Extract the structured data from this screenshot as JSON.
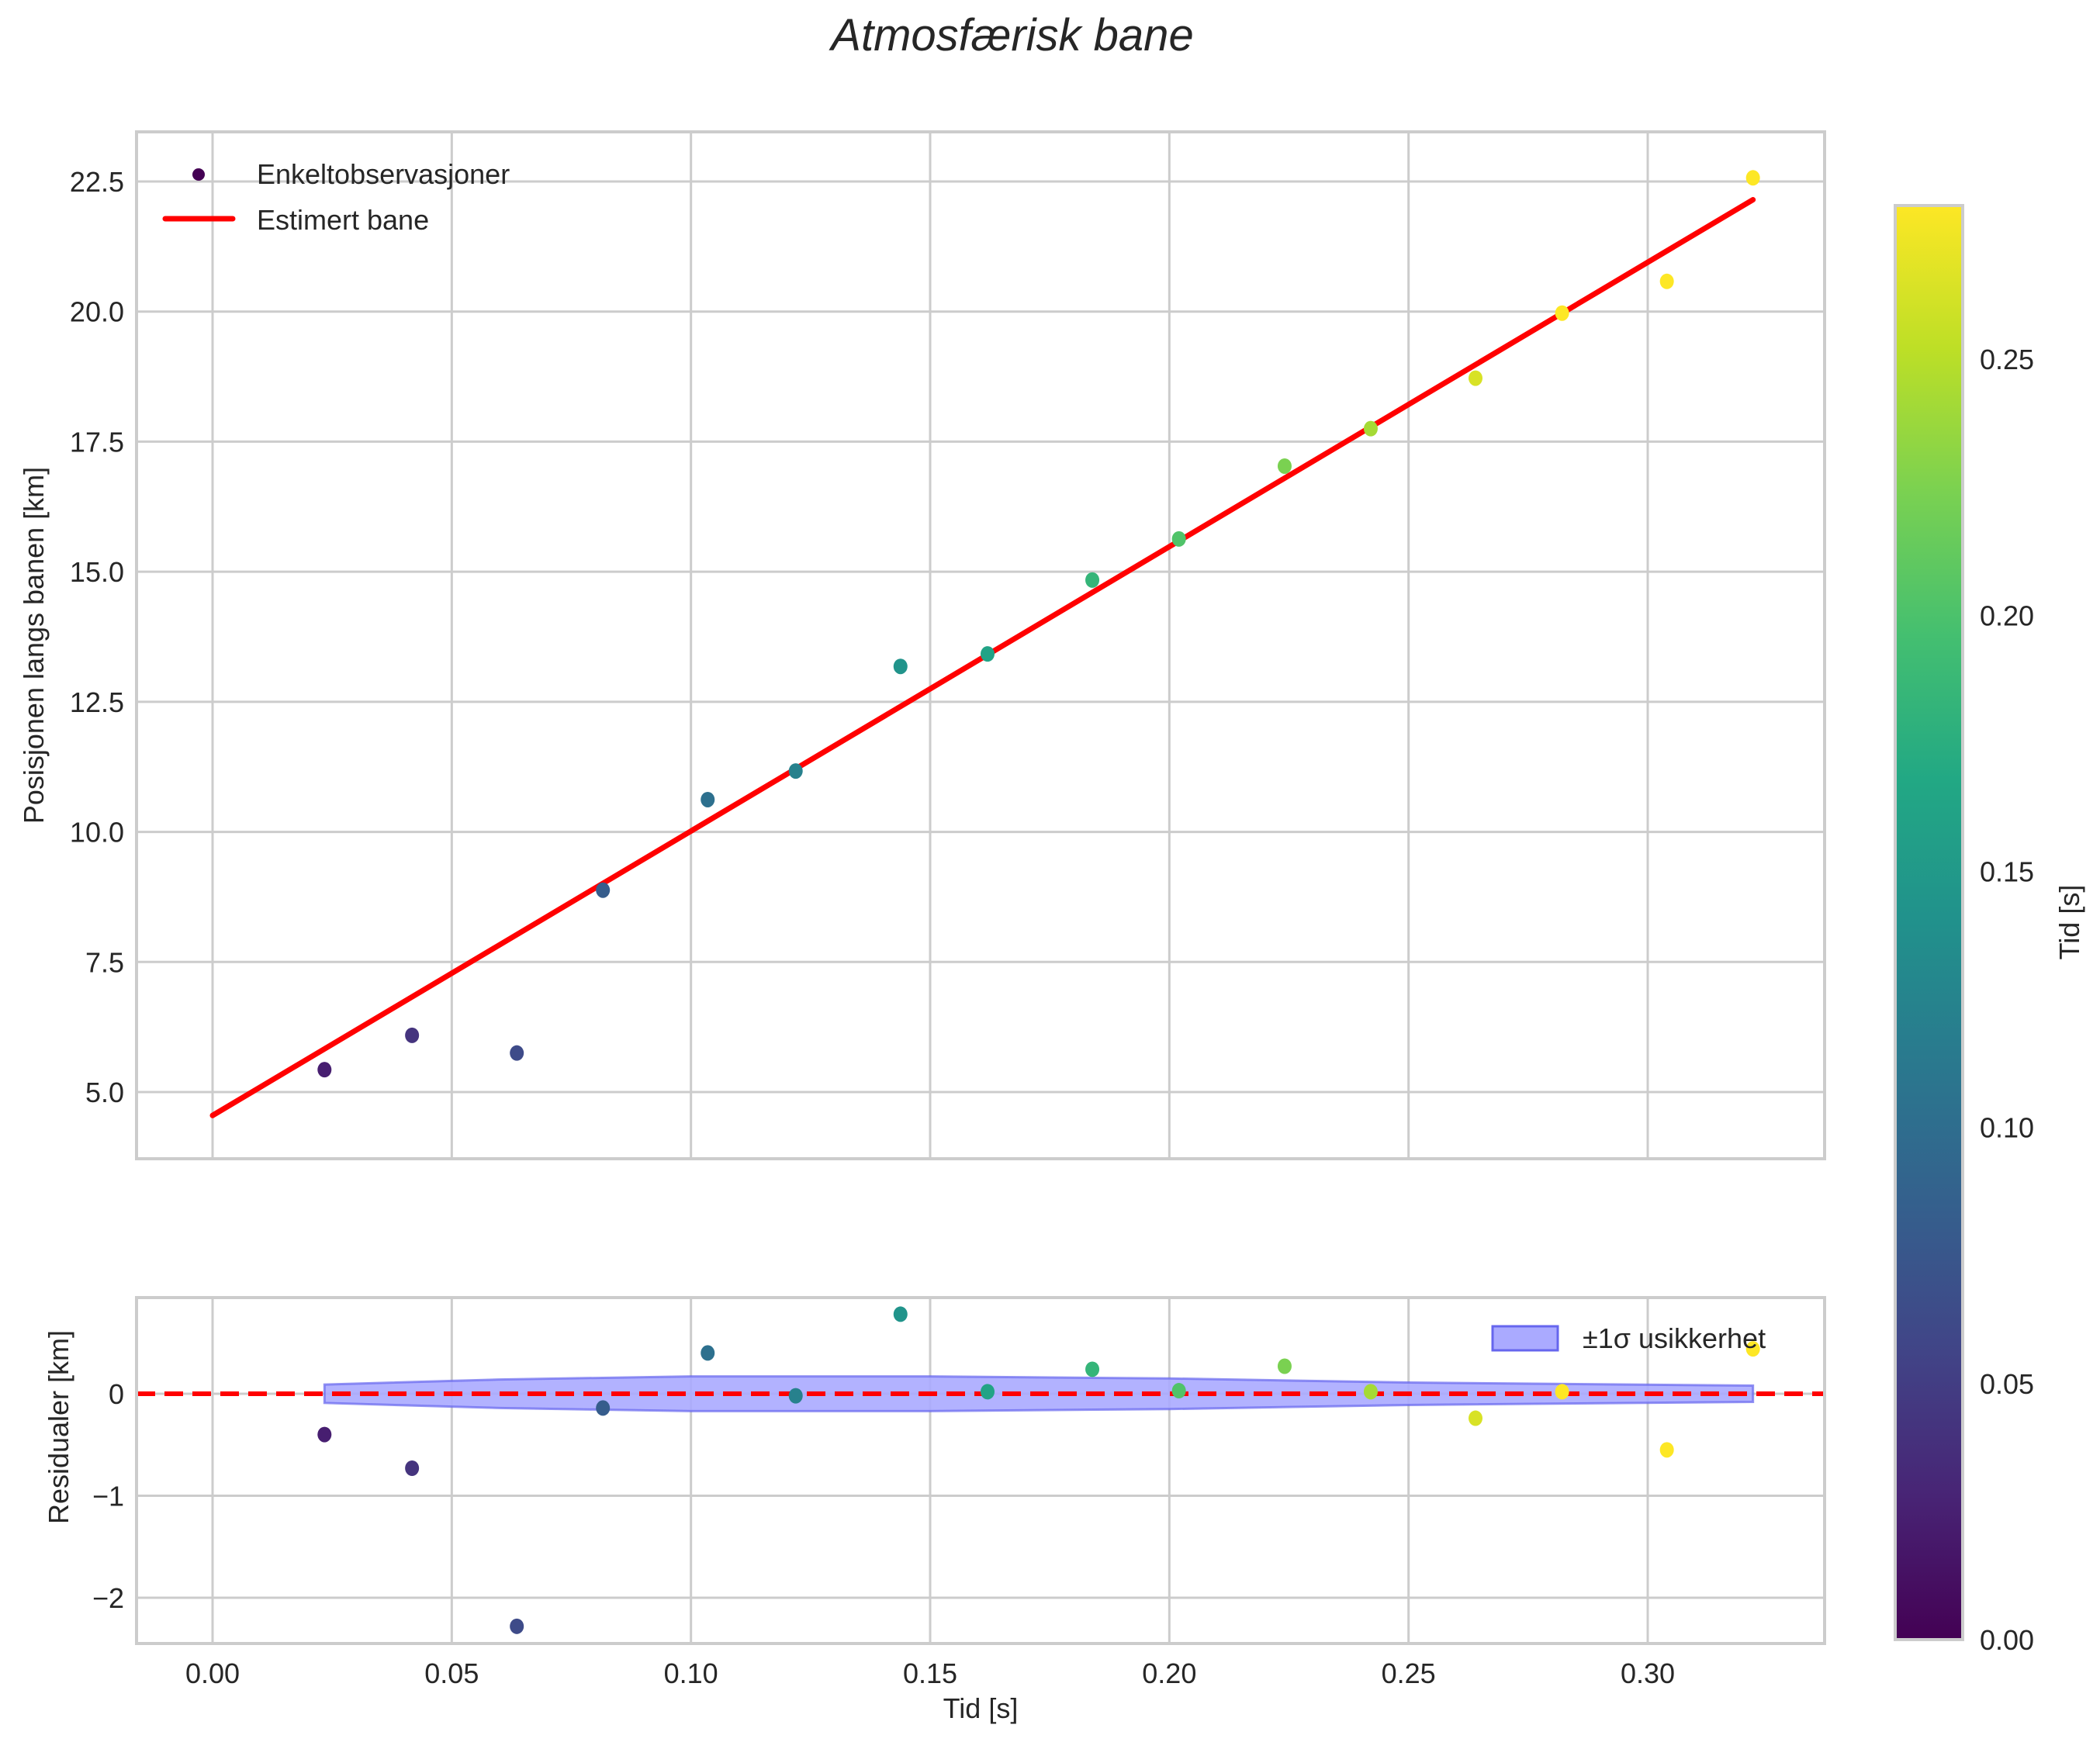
{
  "title": "Atmosfærisk bane",
  "colors": {
    "grid": "#cccccc",
    "fit_line": "#ff0000",
    "band_fill": "#aaaaff",
    "band_edge": "#6666ee",
    "text": "#262626"
  },
  "top_panel": {
    "ylabel": "Posisjonen langs banen [km]",
    "yticks": [
      "5.0",
      "7.5",
      "10.0",
      "12.5",
      "15.0",
      "17.5",
      "20.0",
      "22.5"
    ],
    "legend": {
      "scatter_label": "Enkeltobservasjoner",
      "line_label": "Estimert bane"
    }
  },
  "bottom_panel": {
    "ylabel": "Residualer [km]",
    "yticks": [
      "0",
      "−1",
      "−2"
    ],
    "xlabel": "Tid [s]",
    "xticks": [
      "0.00",
      "0.05",
      "0.10",
      "0.15",
      "0.20",
      "0.25",
      "0.30"
    ],
    "legend": {
      "band_label": "±1σ usikkerhet"
    }
  },
  "colorbar": {
    "label": "Tid [s]",
    "ticks": [
      "0.00",
      "0.05",
      "0.10",
      "0.15",
      "0.20",
      "0.25"
    ],
    "range": [
      0.0,
      0.28
    ]
  },
  "chart_data": [
    {
      "type": "scatter",
      "title": "Atmosfærisk bane",
      "xlabel": "",
      "ylabel": "Posisjonen langs banen [km]",
      "xlim": [
        -0.016,
        0.337
      ],
      "ylim": [
        3.6,
        23.4
      ],
      "grid": true,
      "legend_position": "upper left",
      "series": [
        {
          "name": "Enkeltobservasjoner",
          "type": "scatter",
          "colormap": "viridis",
          "x": [
            0.0234,
            0.0417,
            0.0636,
            0.0816,
            0.1035,
            0.1219,
            0.1438,
            0.162,
            0.1839,
            0.202,
            0.2241,
            0.2421,
            0.264,
            0.2821,
            0.304,
            0.322
          ],
          "y": [
            5.43,
            6.09,
            5.75,
            8.88,
            10.62,
            11.17,
            13.18,
            13.42,
            14.84,
            15.63,
            17.03,
            17.75,
            18.72,
            19.97,
            20.58,
            22.57
          ]
        },
        {
          "name": "Estimert bane",
          "type": "line",
          "color": "#ff0000",
          "x": [
            0.0,
            0.322
          ],
          "y": [
            4.55,
            22.15
          ]
        }
      ]
    },
    {
      "type": "scatter",
      "title": "",
      "xlabel": "Tid [s]",
      "ylabel": "Residualer [km]",
      "xlim": [
        -0.016,
        0.337
      ],
      "ylim": [
        -2.45,
        0.95
      ],
      "grid": true,
      "legend_position": "upper right",
      "series": [
        {
          "name": "Residualer",
          "type": "scatter",
          "colormap": "viridis",
          "x": [
            0.0234,
            0.0417,
            0.0636,
            0.0816,
            0.1035,
            0.1219,
            0.1438,
            0.162,
            0.1839,
            0.202,
            0.2241,
            0.2421,
            0.264,
            0.2821,
            0.304,
            0.322
          ],
          "y": [
            -0.4,
            -0.73,
            -2.28,
            -0.14,
            0.4,
            -0.02,
            0.78,
            0.02,
            0.24,
            0.03,
            0.27,
            0.02,
            -0.24,
            0.02,
            -0.55,
            0.44
          ]
        },
        {
          "name": "±1σ usikkerhet",
          "type": "area",
          "x": [
            0.0234,
            0.06,
            0.1,
            0.15,
            0.2,
            0.25,
            0.322
          ],
          "upper": [
            0.09,
            0.14,
            0.17,
            0.17,
            0.15,
            0.11,
            0.08
          ],
          "lower": [
            -0.09,
            -0.14,
            -0.17,
            -0.17,
            -0.15,
            -0.11,
            -0.08
          ]
        },
        {
          "name": "zero",
          "type": "line",
          "style": "dashed",
          "color": "#ff0000",
          "y": 0
        }
      ]
    }
  ]
}
